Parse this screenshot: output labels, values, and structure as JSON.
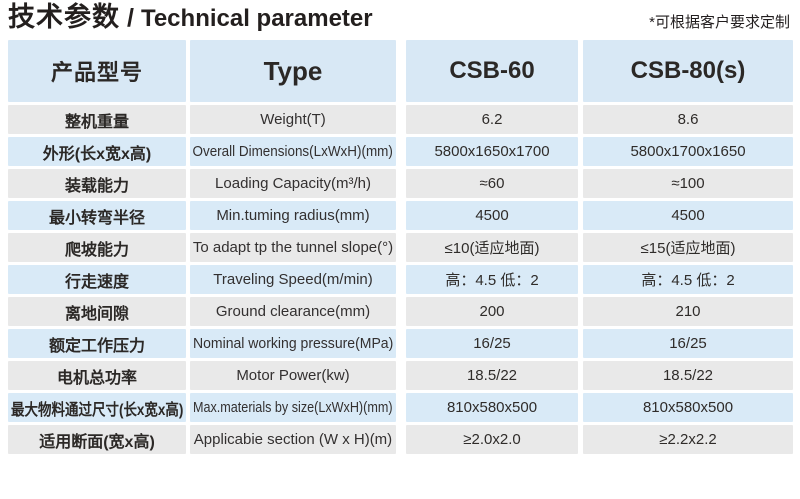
{
  "page": {
    "title_cn": "技术参数",
    "title_sep": "/",
    "title_en": "Technical parameter",
    "note": "*可根据客户要求定制"
  },
  "table": {
    "header": {
      "product_model": "产品型号",
      "type": "Type",
      "model_a": "CSB-60",
      "model_b": "CSB-80(s)"
    },
    "rows": [
      {
        "cn": "整机重量",
        "en": "Weight(T)",
        "va": "6.2",
        "vb": "8.6"
      },
      {
        "cn": "外形(长x宽x高)",
        "en": "Overall Dimensions(LxWxH)(mm)",
        "va": "5800x1650x1700",
        "vb": "5800x1700x1650"
      },
      {
        "cn": "装载能力",
        "en": "Loading Capacity(m³/h)",
        "va": "≈60",
        "vb": "≈100"
      },
      {
        "cn": "最小转弯半径",
        "en": "Min.tuming radius(mm)",
        "va": "4500",
        "vb": "4500"
      },
      {
        "cn": "爬坡能力",
        "en": "To adapt tp the tunnel slope(°)",
        "va": "≤10(适应地面)",
        "vb": "≤15(适应地面)"
      },
      {
        "cn": "行走速度",
        "en": "Traveling Speed(m/min)",
        "va": "高：4.5 低：2",
        "vb": "高：4.5 低：2"
      },
      {
        "cn": "离地间隙",
        "en": "Ground clearance(mm)",
        "va": "200",
        "vb": "210"
      },
      {
        "cn": "额定工作压力",
        "en": "Nominal working pressure(MPa)",
        "va": "16/25",
        "vb": "16/25"
      },
      {
        "cn": "电机总功率",
        "en": "Motor Power(kw)",
        "va": "18.5/22",
        "vb": "18.5/22"
      },
      {
        "cn": "最大物料通过尺寸(长x宽x高)",
        "en": "Max.materials by size(LxWxH)(mm)",
        "va": "810x580x500",
        "vb": "810x580x500"
      },
      {
        "cn": "适用断面(宽x高)",
        "en": "Applicabie section (W x H)(m)",
        "va": "≥2.0x2.0",
        "vb": "≥2.2x2.2"
      }
    ]
  },
  "colors": {
    "header_bg": "#d8e8f5",
    "row_blue": "#d9eaf7",
    "row_gray": "#e9e9e9",
    "text": "#2b2826"
  }
}
